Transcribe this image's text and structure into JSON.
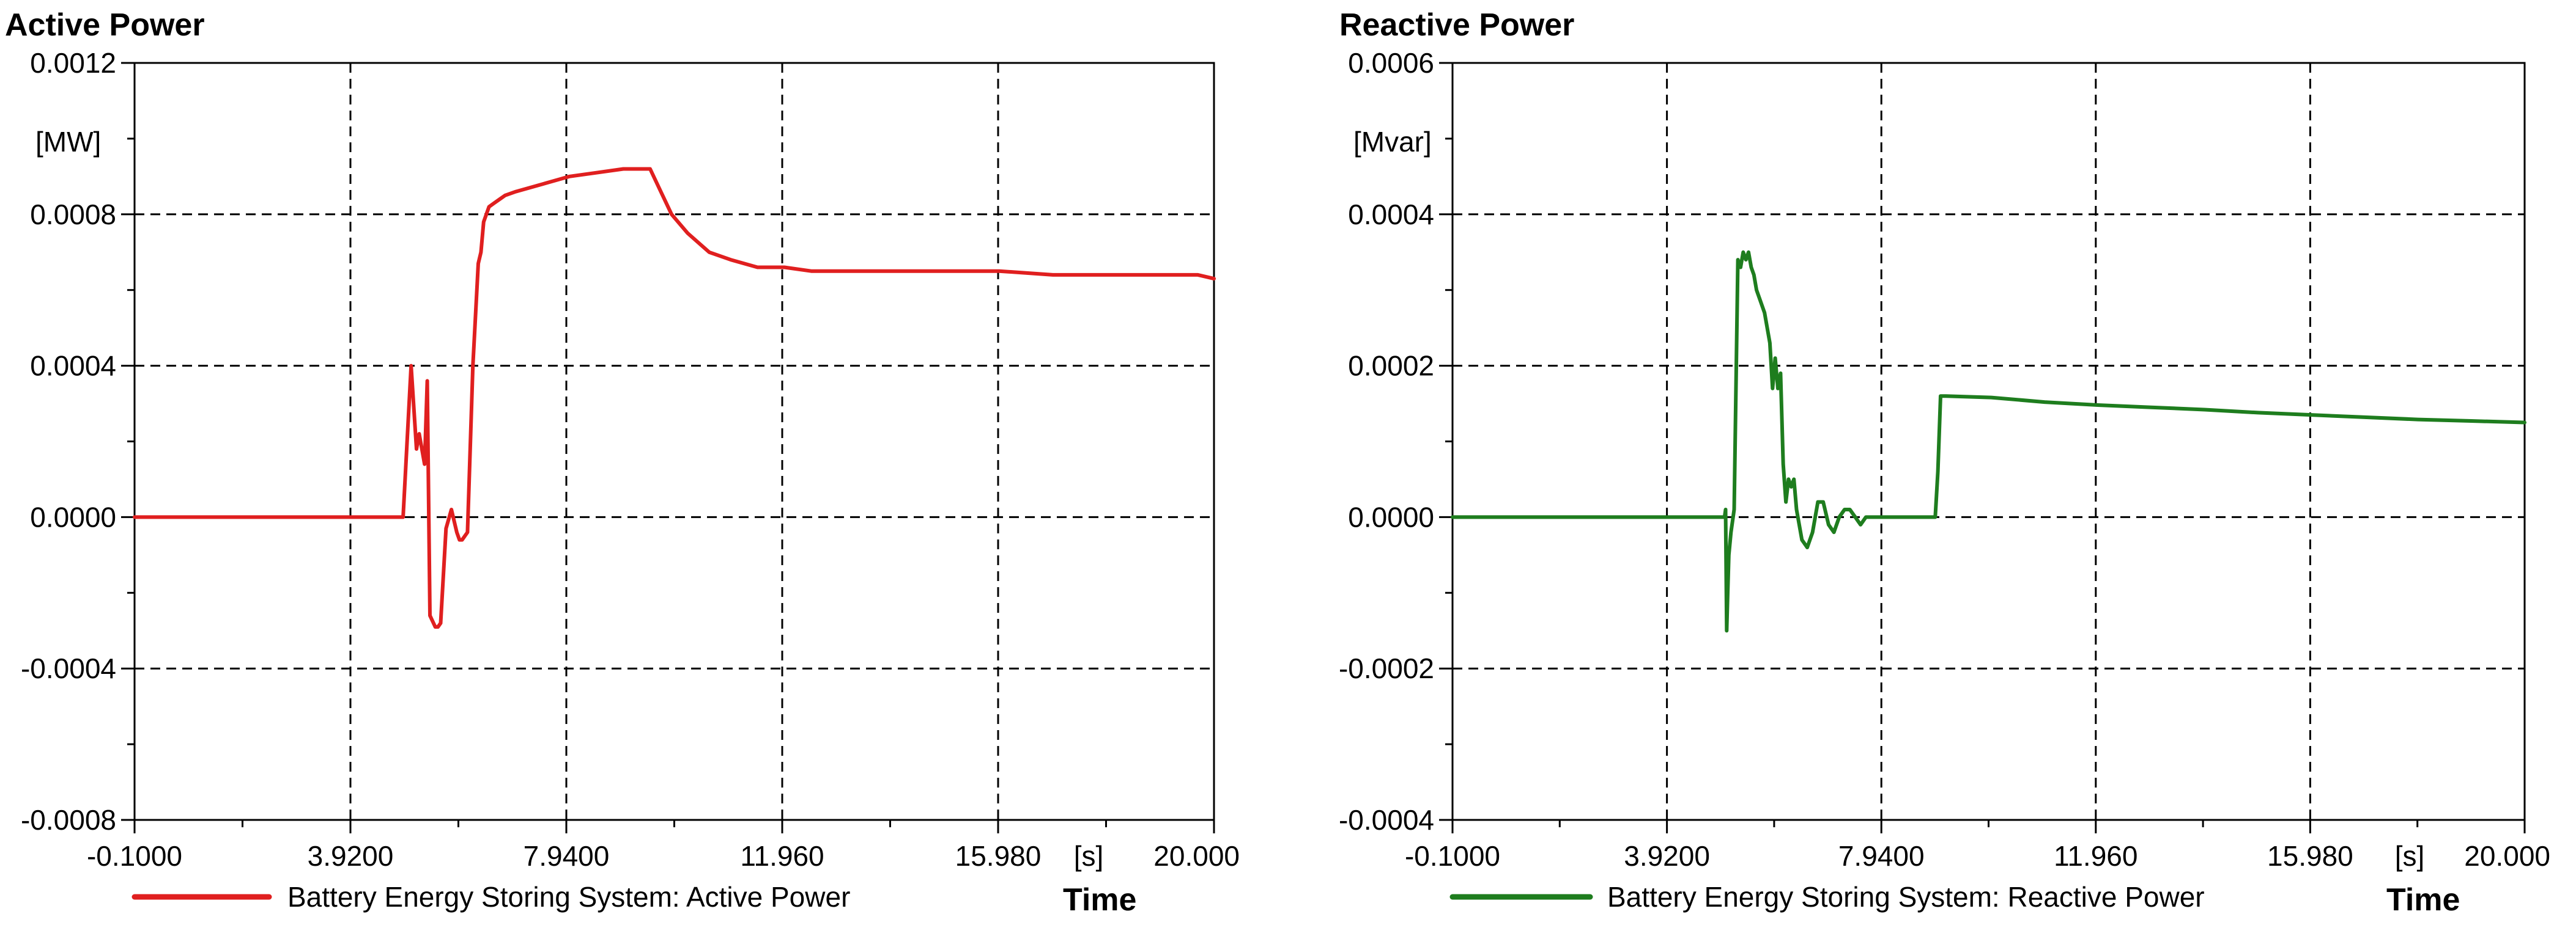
{
  "chart_data": [
    {
      "type": "line",
      "title": "Active Power",
      "ylabel": "[MW]",
      "xlabel": "Time",
      "x_unit": "[s]",
      "xlim": [
        -0.1,
        20.0
      ],
      "ylim": [
        -0.0008,
        0.0012
      ],
      "x_ticks": [
        "-0.1000",
        "3.9200",
        "7.9400",
        "11.960",
        "15.980",
        "20.000"
      ],
      "y_ticks": [
        "0.0012",
        "0.0008",
        "0.0004",
        "0.0000",
        "-0.0004",
        "-0.0008"
      ],
      "series": [
        {
          "name": "Battery Energy Storing System: Active Power",
          "color": "#e01f1f",
          "x": [
            -0.1,
            4.9,
            5.05,
            5.15,
            5.2,
            5.3,
            5.35,
            5.4,
            5.5,
            5.55,
            5.6,
            5.7,
            5.8,
            5.9,
            5.95,
            6.0,
            6.1,
            6.2,
            6.3,
            6.35,
            6.4,
            6.5,
            6.6,
            6.7,
            6.8,
            7.0,
            7.5,
            8.0,
            8.5,
            9.0,
            9.5,
            9.7,
            9.9,
            10.2,
            10.6,
            11.0,
            11.5,
            12.0,
            12.5,
            13.0,
            14.0,
            15.0,
            16.0,
            17.0,
            18.0,
            19.0,
            19.7,
            20.0
          ],
          "y": [
            0.0,
            0.0,
            0.0004,
            0.00018,
            0.00022,
            0.00014,
            0.00036,
            -0.00026,
            -0.00029,
            -0.00029,
            -0.00028,
            -3e-05,
            2e-05,
            -4e-05,
            -6e-05,
            -6e-05,
            -4e-05,
            0.0004,
            0.00067,
            0.0007,
            0.00078,
            0.00082,
            0.00083,
            0.00084,
            0.00085,
            0.00086,
            0.00088,
            0.0009,
            0.00091,
            0.00092,
            0.00092,
            0.00086,
            0.0008,
            0.00075,
            0.0007,
            0.00068,
            0.00066,
            0.00066,
            0.00065,
            0.00065,
            0.00065,
            0.00065,
            0.00065,
            0.00064,
            0.00064,
            0.00064,
            0.00064,
            0.00063
          ]
        }
      ]
    },
    {
      "type": "line",
      "title": "Reactive Power",
      "ylabel": "[Mvar]",
      "xlabel": "Time",
      "x_unit": "[s]",
      "xlim": [
        -0.1,
        20.0
      ],
      "ylim": [
        -0.0004,
        0.0006
      ],
      "x_ticks": [
        "-0.1000",
        "3.9200",
        "7.9400",
        "11.960",
        "15.980",
        "20.000"
      ],
      "y_ticks": [
        "0.0006",
        "0.0004",
        "0.0002",
        "0.0000",
        "-0.0002",
        "-0.0004"
      ],
      "series": [
        {
          "name": "Battery Energy Storing System: Reactive Power",
          "color": "#1e7d1e",
          "x": [
            -0.1,
            5.0,
            5.02,
            5.04,
            5.06,
            5.08,
            5.12,
            5.18,
            5.25,
            5.3,
            5.35,
            5.4,
            5.45,
            5.5,
            5.55,
            5.6,
            5.65,
            5.75,
            5.85,
            5.9,
            5.95,
            6.0,
            6.05,
            6.1,
            6.15,
            6.2,
            6.25,
            6.3,
            6.35,
            6.45,
            6.55,
            6.65,
            6.75,
            6.85,
            6.95,
            7.05,
            7.15,
            7.25,
            7.35,
            7.45,
            7.55,
            7.65,
            7.8,
            8.0,
            8.3,
            8.6,
            8.8,
            8.95,
            9.0,
            9.05,
            9.15,
            10.0,
            11.0,
            12.0,
            13.0,
            14.0,
            15.0,
            16.0,
            17.0,
            18.0,
            19.0,
            20.0
          ],
          "y": [
            0.0,
            0.0,
            1e-05,
            -0.00015,
            -0.0001,
            -5e-05,
            -2e-05,
            1e-05,
            0.00034,
            0.00033,
            0.00035,
            0.00034,
            0.00035,
            0.00033,
            0.00032,
            0.0003,
            0.00029,
            0.00027,
            0.00023,
            0.00017,
            0.00021,
            0.00017,
            0.00019,
            7e-05,
            2e-05,
            5e-05,
            4e-05,
            5e-05,
            1e-05,
            -3e-05,
            -4e-05,
            -2e-05,
            2e-05,
            2e-05,
            -1e-05,
            -2e-05,
            0.0,
            1e-05,
            1e-05,
            0.0,
            -1e-05,
            0.0,
            0.0,
            0.0,
            0.0,
            0.0,
            0.0,
            0.0,
            6e-05,
            0.00016,
            0.00016,
            0.000158,
            0.000152,
            0.000148,
            0.000145,
            0.000142,
            0.000138,
            0.000135,
            0.000132,
            0.000129,
            0.000127,
            0.000125
          ]
        }
      ]
    }
  ]
}
